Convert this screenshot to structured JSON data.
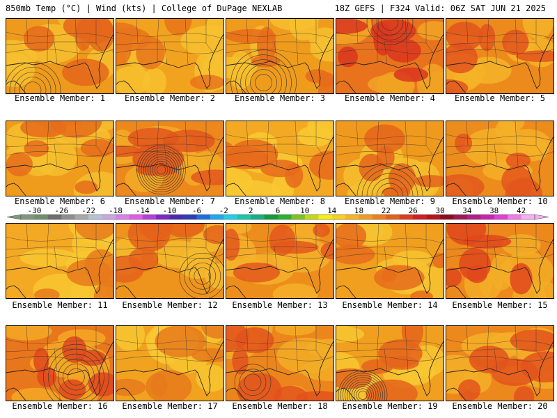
{
  "header": {
    "left": "850mb Temp (°C) | Wind (kts) | College of DuPage NEXLAB",
    "right": "18Z GEFS | F324 Valid: 06Z SAT JUN 21 2025"
  },
  "panels": [
    {
      "label": "Ensemble Member: 1",
      "base": "#ee9a1c",
      "hot": "#e4661b",
      "warm": "#f6bf2e",
      "low": [
        0.25,
        0.95
      ],
      "rings": 5
    },
    {
      "label": "Ensemble Member: 2",
      "base": "#f1a21f",
      "hot": "#e8741b",
      "warm": "#f7c12f",
      "low": null,
      "rings": 0
    },
    {
      "label": "Ensemble Member: 3",
      "base": "#ef9c1d",
      "hot": "#e66c1b",
      "warm": "#f6bf2e",
      "low": [
        0.35,
        0.85
      ],
      "rings": 6
    },
    {
      "label": "Ensemble Member: 4",
      "base": "#e8731c",
      "hot": "#d9361d",
      "warm": "#f2a323",
      "low": [
        0.5,
        0.05
      ],
      "rings": 4
    },
    {
      "label": "Ensemble Member: 5",
      "base": "#ec8a1c",
      "hot": "#e2541c",
      "warm": "#f4b328",
      "low": null,
      "rings": 0
    },
    {
      "label": "Ensemble Member: 6",
      "base": "#ef9c1d",
      "hot": "#e66c1b",
      "warm": "#f6bf2e",
      "low": null,
      "rings": 0
    },
    {
      "label": "Ensemble Member: 7",
      "base": "#ec881c",
      "hot": "#e2561c",
      "warm": "#f3ad26",
      "low": [
        0.42,
        0.65
      ],
      "rings": 10
    },
    {
      "label": "Ensemble Member: 8",
      "base": "#f3aa22",
      "hot": "#e66a1b",
      "warm": "#f8c931",
      "low": null,
      "rings": 0
    },
    {
      "label": "Ensemble Member: 9",
      "base": "#ef9a1d",
      "hot": "#e4641b",
      "warm": "#f6bf2e",
      "low": [
        0.5,
        1.0
      ],
      "rings": 6
    },
    {
      "label": "Ensemble Member: 10",
      "base": "#ec8c1c",
      "hot": "#e3561c",
      "warm": "#f4b028",
      "low": null,
      "rings": 0
    },
    {
      "label": "Ensemble Member: 11",
      "base": "#f3a923",
      "hot": "#e87a1b",
      "warm": "#f8c731",
      "low": null,
      "rings": 0
    },
    {
      "label": "Ensemble Member: 12",
      "base": "#ee941c",
      "hot": "#e4611b",
      "warm": "#f5bb2d",
      "low": [
        0.8,
        0.7
      ],
      "rings": 4
    },
    {
      "label": "Ensemble Member: 13",
      "base": "#ed8e1c",
      "hot": "#e3581c",
      "warm": "#f4b22a",
      "low": null,
      "rings": 0
    },
    {
      "label": "Ensemble Member: 14",
      "base": "#f0a01e",
      "hot": "#e66c1b",
      "warm": "#f7c330",
      "low": null,
      "rings": 0
    },
    {
      "label": "Ensemble Member: 15",
      "base": "#ec881c",
      "hot": "#e0471c",
      "warm": "#f3ad26",
      "low": null,
      "rings": 0
    },
    {
      "label": "Ensemble Member: 16",
      "base": "#e8761c",
      "hot": "#e0461c",
      "warm": "#f3a924",
      "low": [
        0.65,
        0.68
      ],
      "rings": 6
    },
    {
      "label": "Ensemble Member: 17",
      "base": "#f1a320",
      "hot": "#e67a1b",
      "warm": "#f8c731",
      "low": null,
      "rings": 0
    },
    {
      "label": "Ensemble Member: 18",
      "base": "#ec861c",
      "hot": "#e2521c",
      "warm": "#f3ad26",
      "low": [
        0.25,
        0.75
      ],
      "rings": 3
    },
    {
      "label": "Ensemble Member: 19",
      "base": "#f0a01e",
      "hot": "#e4641b",
      "warm": "#f8c731",
      "low": [
        0.25,
        0.92
      ],
      "rings": 10
    },
    {
      "label": "Ensemble Member: 20",
      "base": "#ec881c",
      "hot": "#e2531c",
      "warm": "#f4b028",
      "low": null,
      "rings": 0
    }
  ],
  "colorbar": {
    "ticks": [
      "-30",
      "-26",
      "-22",
      "-18",
      "-14",
      "-10",
      "-6",
      "-2",
      "2",
      "6",
      "10",
      "14",
      "18",
      "22",
      "26",
      "30",
      "34",
      "38",
      "42"
    ],
    "colors": [
      "#7f977f",
      "#6f8f6f",
      "#6e6e6e",
      "#8f8f8f",
      "#a8a8a8",
      "#b7c2d4",
      "#c9a8de",
      "#d980e8",
      "#e15ce6",
      "#b43fd8",
      "#7a28c8",
      "#4b2ab0",
      "#2d3db8",
      "#1f6ee0",
      "#20a8ef",
      "#1fd0e8",
      "#19c8a8",
      "#17b080",
      "#129a3d",
      "#2db02d",
      "#7ec41e",
      "#c6d914",
      "#f7ee12",
      "#f8d21a",
      "#f7b521",
      "#f39b1f",
      "#ee7f1c",
      "#e6601b",
      "#e03a1c",
      "#d41d21",
      "#b8121c",
      "#8e0d1c",
      "#9b1a55",
      "#b21e86",
      "#cc22b0",
      "#e040d4",
      "#f07ae8",
      "#f5b0f0"
    ]
  }
}
